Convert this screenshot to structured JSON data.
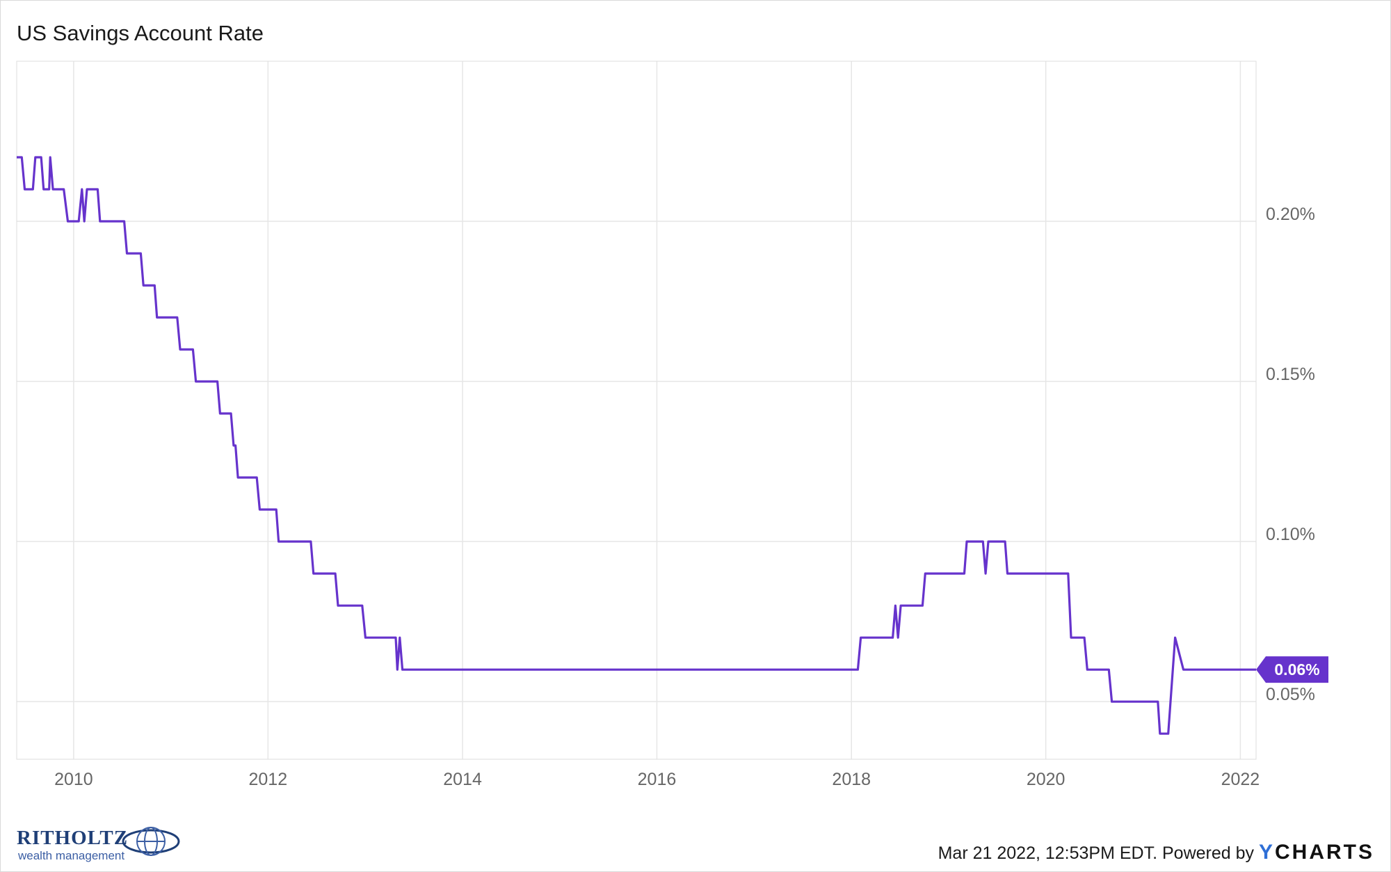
{
  "title": "US Savings Account Rate",
  "footer": {
    "timestamp_text": "Mar 21 2022, 12:53PM EDT. Powered by",
    "brand_y": "Y",
    "brand_rest": "CHARTS"
  },
  "logo": {
    "name": "RITHOLTZ",
    "subtitle": "wealth management"
  },
  "colors": {
    "line": "#6633cc",
    "grid": "#e6e6e6",
    "axis_text": "#666666"
  },
  "chart_data": {
    "type": "line",
    "title": "US Savings Account Rate",
    "xlabel": "",
    "ylabel": "",
    "x_ticks": [
      "2010",
      "2012",
      "2014",
      "2016",
      "2018",
      "2020",
      "2022"
    ],
    "y_ticks": [
      "0.05%",
      "0.10%",
      "0.15%",
      "0.20%"
    ],
    "xlim": [
      "2009-06-01",
      "2022-03-01"
    ],
    "ylim": [
      0.032,
      0.25
    ],
    "grid": true,
    "last_value_label": "0.06%",
    "series": [
      {
        "color": "#6633cc",
        "points": [
          [
            "2009-06-01",
            0.22
          ],
          [
            "2009-06-20",
            0.22
          ],
          [
            "2009-07-01",
            0.21
          ],
          [
            "2009-08-01",
            0.21
          ],
          [
            "2009-08-10",
            0.22
          ],
          [
            "2009-09-01",
            0.22
          ],
          [
            "2009-09-10",
            0.21
          ],
          [
            "2009-10-01",
            0.21
          ],
          [
            "2009-10-05",
            0.22
          ],
          [
            "2009-10-15",
            0.21
          ],
          [
            "2009-11-25",
            0.21
          ],
          [
            "2009-12-10",
            0.2
          ],
          [
            "2010-01-20",
            0.2
          ],
          [
            "2010-02-01",
            0.21
          ],
          [
            "2010-02-10",
            0.2
          ],
          [
            "2010-02-20",
            0.21
          ],
          [
            "2010-04-01",
            0.21
          ],
          [
            "2010-04-10",
            0.2
          ],
          [
            "2010-07-10",
            0.2
          ],
          [
            "2010-07-20",
            0.19
          ],
          [
            "2010-09-10",
            0.19
          ],
          [
            "2010-09-20",
            0.18
          ],
          [
            "2010-11-01",
            0.18
          ],
          [
            "2010-11-10",
            0.17
          ],
          [
            "2011-01-25",
            0.17
          ],
          [
            "2011-02-05",
            0.16
          ],
          [
            "2011-03-25",
            0.16
          ],
          [
            "2011-04-05",
            0.15
          ],
          [
            "2011-06-25",
            0.15
          ],
          [
            "2011-07-05",
            0.14
          ],
          [
            "2011-08-15",
            0.14
          ],
          [
            "2011-08-25",
            0.13
          ],
          [
            "2011-09-01",
            0.13
          ],
          [
            "2011-09-10",
            0.12
          ],
          [
            "2011-11-20",
            0.12
          ],
          [
            "2011-12-01",
            0.11
          ],
          [
            "2012-02-01",
            0.11
          ],
          [
            "2012-02-10",
            0.1
          ],
          [
            "2012-06-10",
            0.1
          ],
          [
            "2012-06-20",
            0.09
          ],
          [
            "2012-09-10",
            0.09
          ],
          [
            "2012-09-20",
            0.08
          ],
          [
            "2012-12-20",
            0.08
          ],
          [
            "2013-01-01",
            0.07
          ],
          [
            "2013-04-25",
            0.07
          ],
          [
            "2013-05-01",
            0.06
          ],
          [
            "2013-05-10",
            0.07
          ],
          [
            "2013-05-20",
            0.06
          ],
          [
            "2018-01-25",
            0.06
          ],
          [
            "2018-02-05",
            0.07
          ],
          [
            "2018-06-05",
            0.07
          ],
          [
            "2018-06-15",
            0.08
          ],
          [
            "2018-06-25",
            0.07
          ],
          [
            "2018-07-05",
            0.08
          ],
          [
            "2018-09-25",
            0.08
          ],
          [
            "2018-10-05",
            0.09
          ],
          [
            "2019-03-01",
            0.09
          ],
          [
            "2019-03-10",
            0.1
          ],
          [
            "2019-05-10",
            0.1
          ],
          [
            "2019-05-20",
            0.09
          ],
          [
            "2019-05-30",
            0.1
          ],
          [
            "2019-08-01",
            0.1
          ],
          [
            "2019-08-10",
            0.09
          ],
          [
            "2020-03-25",
            0.09
          ],
          [
            "2020-04-05",
            0.07
          ],
          [
            "2020-05-25",
            0.07
          ],
          [
            "2020-06-05",
            0.06
          ],
          [
            "2020-08-25",
            0.06
          ],
          [
            "2020-09-05",
            0.05
          ],
          [
            "2021-02-25",
            0.05
          ],
          [
            "2021-03-05",
            0.04
          ],
          [
            "2021-04-05",
            0.04
          ],
          [
            "2021-05-01",
            0.07
          ],
          [
            "2021-06-01",
            0.06
          ],
          [
            "2022-03-01",
            0.06
          ]
        ]
      }
    ]
  }
}
